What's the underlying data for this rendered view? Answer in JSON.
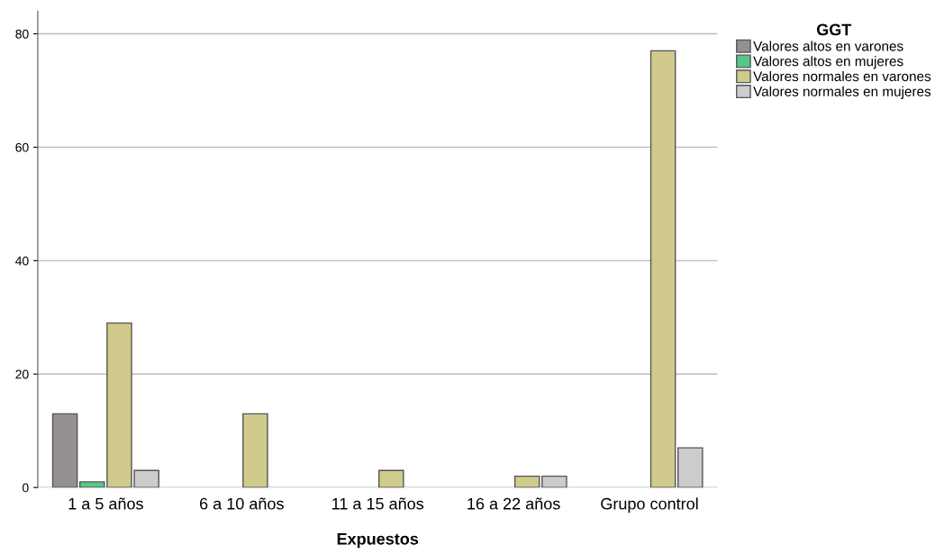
{
  "chart_data": {
    "type": "bar",
    "xlabel": "Expuestos",
    "legend_title": "GGT",
    "categories": [
      "1 a 5 años",
      "6 a 10 años",
      "11 a 15 años",
      "16 a 22 años",
      "Grupo control"
    ],
    "series": [
      {
        "name": "Valores altos en varones",
        "color": "#958f8f",
        "values": [
          13,
          null,
          null,
          null,
          null
        ]
      },
      {
        "name": "Valores altos en mujeres",
        "color": "#54c886",
        "values": [
          1,
          null,
          null,
          null,
          null
        ]
      },
      {
        "name": "Valores normales en varones",
        "color": "#d0ca8c",
        "values": [
          29,
          13,
          3,
          2,
          77
        ]
      },
      {
        "name": "Valores normales en mujeres",
        "color": "#cccccc",
        "values": [
          3,
          null,
          null,
          2,
          7
        ]
      }
    ],
    "ylim": [
      0,
      84
    ],
    "yticks": [
      0,
      20,
      40,
      60,
      80
    ],
    "grid": "y",
    "legend": "top right"
  }
}
